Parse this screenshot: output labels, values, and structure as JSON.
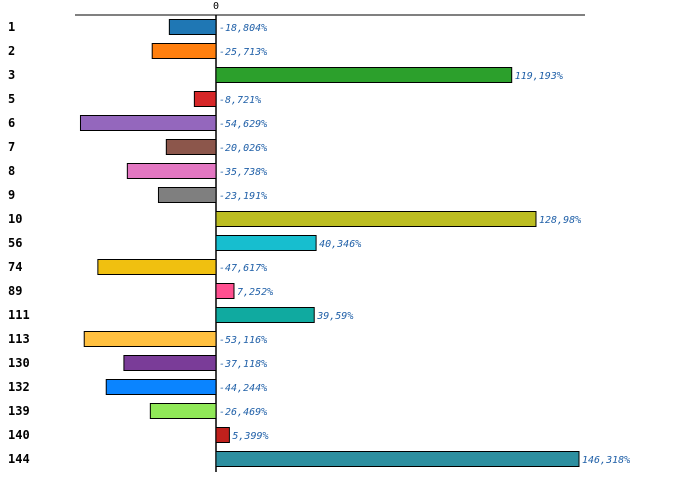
{
  "chart_data": {
    "type": "bar",
    "orientation": "horizontal",
    "zero_tick_label": "0",
    "categories": [
      "1",
      "2",
      "3",
      "5",
      "6",
      "7",
      "8",
      "9",
      "10",
      "56",
      "74",
      "89",
      "111",
      "113",
      "130",
      "132",
      "139",
      "140",
      "144"
    ],
    "values": [
      -18.804,
      -25.713,
      119.193,
      -8.721,
      -54.629,
      -20.026,
      -35.738,
      -23.191,
      128.98,
      40.346,
      -47.617,
      7.252,
      39.59,
      -53.116,
      -37.118,
      -44.244,
      -26.469,
      5.399,
      146.318
    ],
    "value_labels": [
      "-18,804%",
      "-25,713%",
      "119,193%",
      "-8,721%",
      "-54,629%",
      "-20,026%",
      "-35,738%",
      "-23,191%",
      "128,98%",
      "40,346%",
      "-47,617%",
      "7,252%",
      "39,59%",
      "-53,116%",
      "-37,118%",
      "-44,244%",
      "-26,469%",
      "5,399%",
      "146,318%"
    ],
    "colors": [
      "#1f77b4",
      "#ff7f0e",
      "#2ca02c",
      "#d62728",
      "#9467bd",
      "#8c564b",
      "#e377c2",
      "#7f7f7f",
      "#bcbd22",
      "#17becf",
      "#f0c010",
      "#ff5090",
      "#10aaa0",
      "#ffc040",
      "#7a3c98",
      "#0a84ff",
      "#90e858",
      "#c0201c",
      "#2d8fa0"
    ],
    "xlim": [
      -60,
      152
    ],
    "xlabel": "",
    "ylabel": ""
  }
}
